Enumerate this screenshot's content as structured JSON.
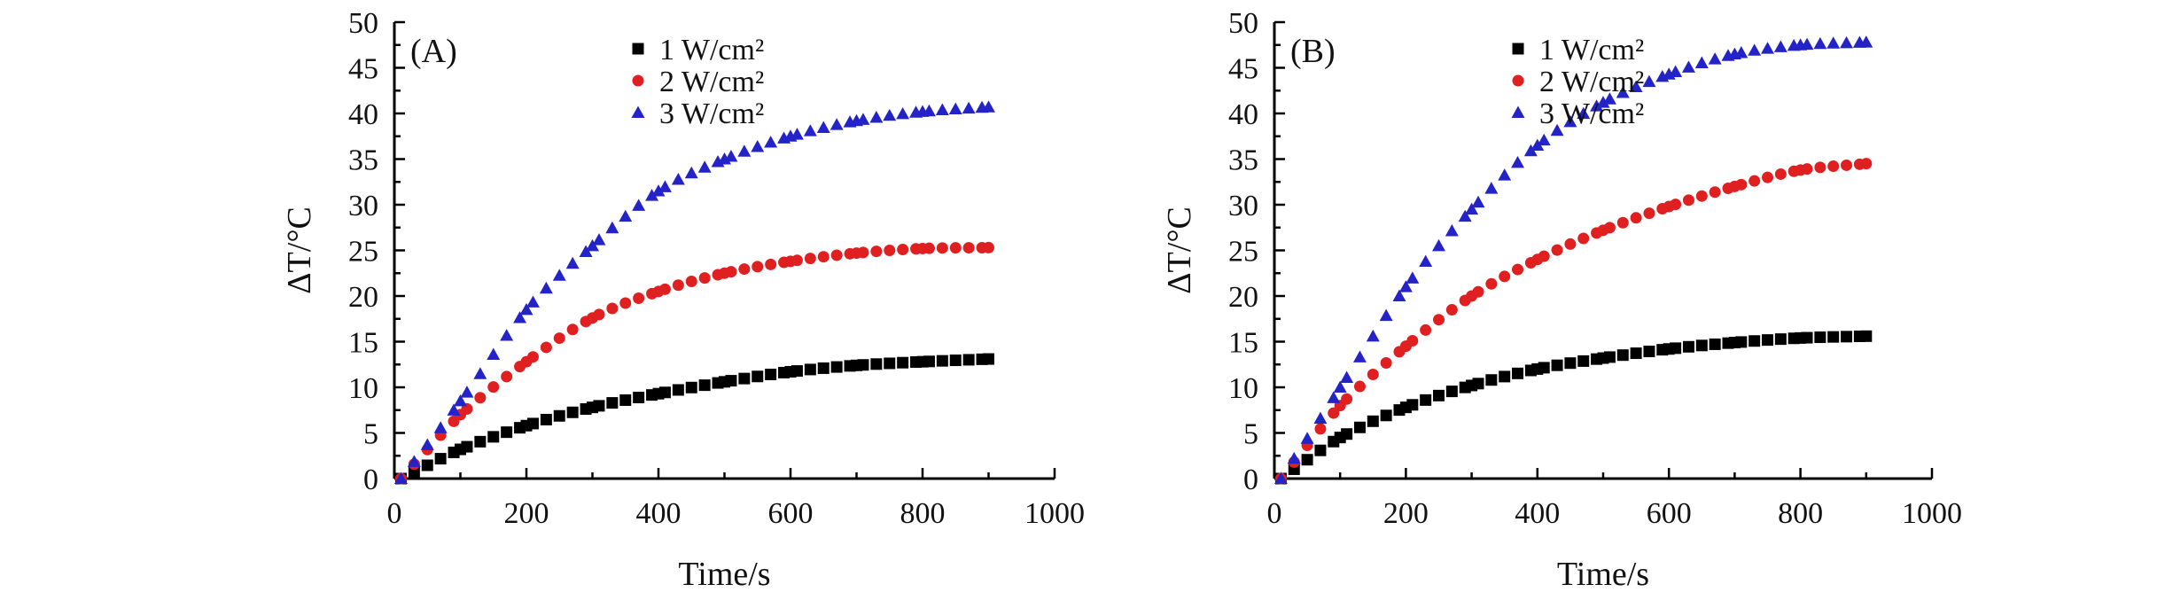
{
  "chart_data": [
    {
      "type": "scatter",
      "panel_label": "(A)",
      "xlabel": "Time/s",
      "ylabel": "ΔT/°C",
      "xlim": [
        0,
        1000
      ],
      "ylim": [
        0,
        50
      ],
      "x_ticks": [
        0,
        200,
        400,
        600,
        800,
        1000
      ],
      "y_ticks": [
        0,
        5,
        10,
        15,
        20,
        25,
        30,
        35,
        40,
        45,
        50
      ],
      "x_tick_labels": [
        "0",
        "200",
        "400",
        "600",
        "800",
        "1000"
      ],
      "y_tick_labels": [
        "0",
        "5",
        "10",
        "15",
        "20",
        "25",
        "30",
        "35",
        "40",
        "45",
        "50"
      ],
      "legend_position": "top-center",
      "x": [
        10,
        100,
        200,
        300,
        400,
        500,
        600,
        700,
        800,
        900
      ],
      "series": [
        {
          "name": "1 W/cm²",
          "marker": "square",
          "color": "#000000",
          "values": [
            0,
            3.2,
            5.8,
            7.8,
            9.3,
            10.6,
            11.7,
            12.4,
            12.8,
            13.1
          ]
        },
        {
          "name": "2 W/cm²",
          "marker": "circle",
          "color": "#e02020",
          "values": [
            0,
            7.0,
            12.8,
            17.6,
            20.5,
            22.5,
            23.8,
            24.7,
            25.2,
            25.3
          ]
        },
        {
          "name": "3 W/cm²",
          "marker": "triangle",
          "color": "#2323c8",
          "values": [
            0,
            8.5,
            18.5,
            25.5,
            31.5,
            35.0,
            37.5,
            39.2,
            40.2,
            40.7
          ]
        }
      ]
    },
    {
      "type": "scatter",
      "panel_label": "(B)",
      "xlabel": "Time/s",
      "ylabel": "ΔT/°C",
      "xlim": [
        0,
        1000
      ],
      "ylim": [
        0,
        50
      ],
      "x_ticks": [
        0,
        200,
        400,
        600,
        800,
        1000
      ],
      "y_ticks": [
        0,
        5,
        10,
        15,
        20,
        25,
        30,
        35,
        40,
        45,
        50
      ],
      "x_tick_labels": [
        "0",
        "200",
        "400",
        "600",
        "800",
        "1000"
      ],
      "y_tick_labels": [
        "0",
        "5",
        "10",
        "15",
        "20",
        "25",
        "30",
        "35",
        "40",
        "45",
        "50"
      ],
      "legend_position": "top-center",
      "x": [
        10,
        100,
        200,
        300,
        400,
        500,
        600,
        700,
        800,
        900
      ],
      "series": [
        {
          "name": "1 W/cm²",
          "marker": "square",
          "color": "#000000",
          "values": [
            0,
            4.5,
            7.8,
            10.2,
            12.0,
            13.2,
            14.2,
            14.9,
            15.4,
            15.6
          ]
        },
        {
          "name": "2 W/cm²",
          "marker": "circle",
          "color": "#e02020",
          "values": [
            0,
            8.0,
            14.5,
            20.0,
            24.0,
            27.2,
            29.8,
            32.0,
            33.8,
            34.5
          ]
        },
        {
          "name": "3 W/cm²",
          "marker": "triangle",
          "color": "#2323c8",
          "values": [
            0,
            10.0,
            21.0,
            29.5,
            36.5,
            41.2,
            44.3,
            46.5,
            47.5,
            47.8
          ]
        }
      ]
    }
  ]
}
